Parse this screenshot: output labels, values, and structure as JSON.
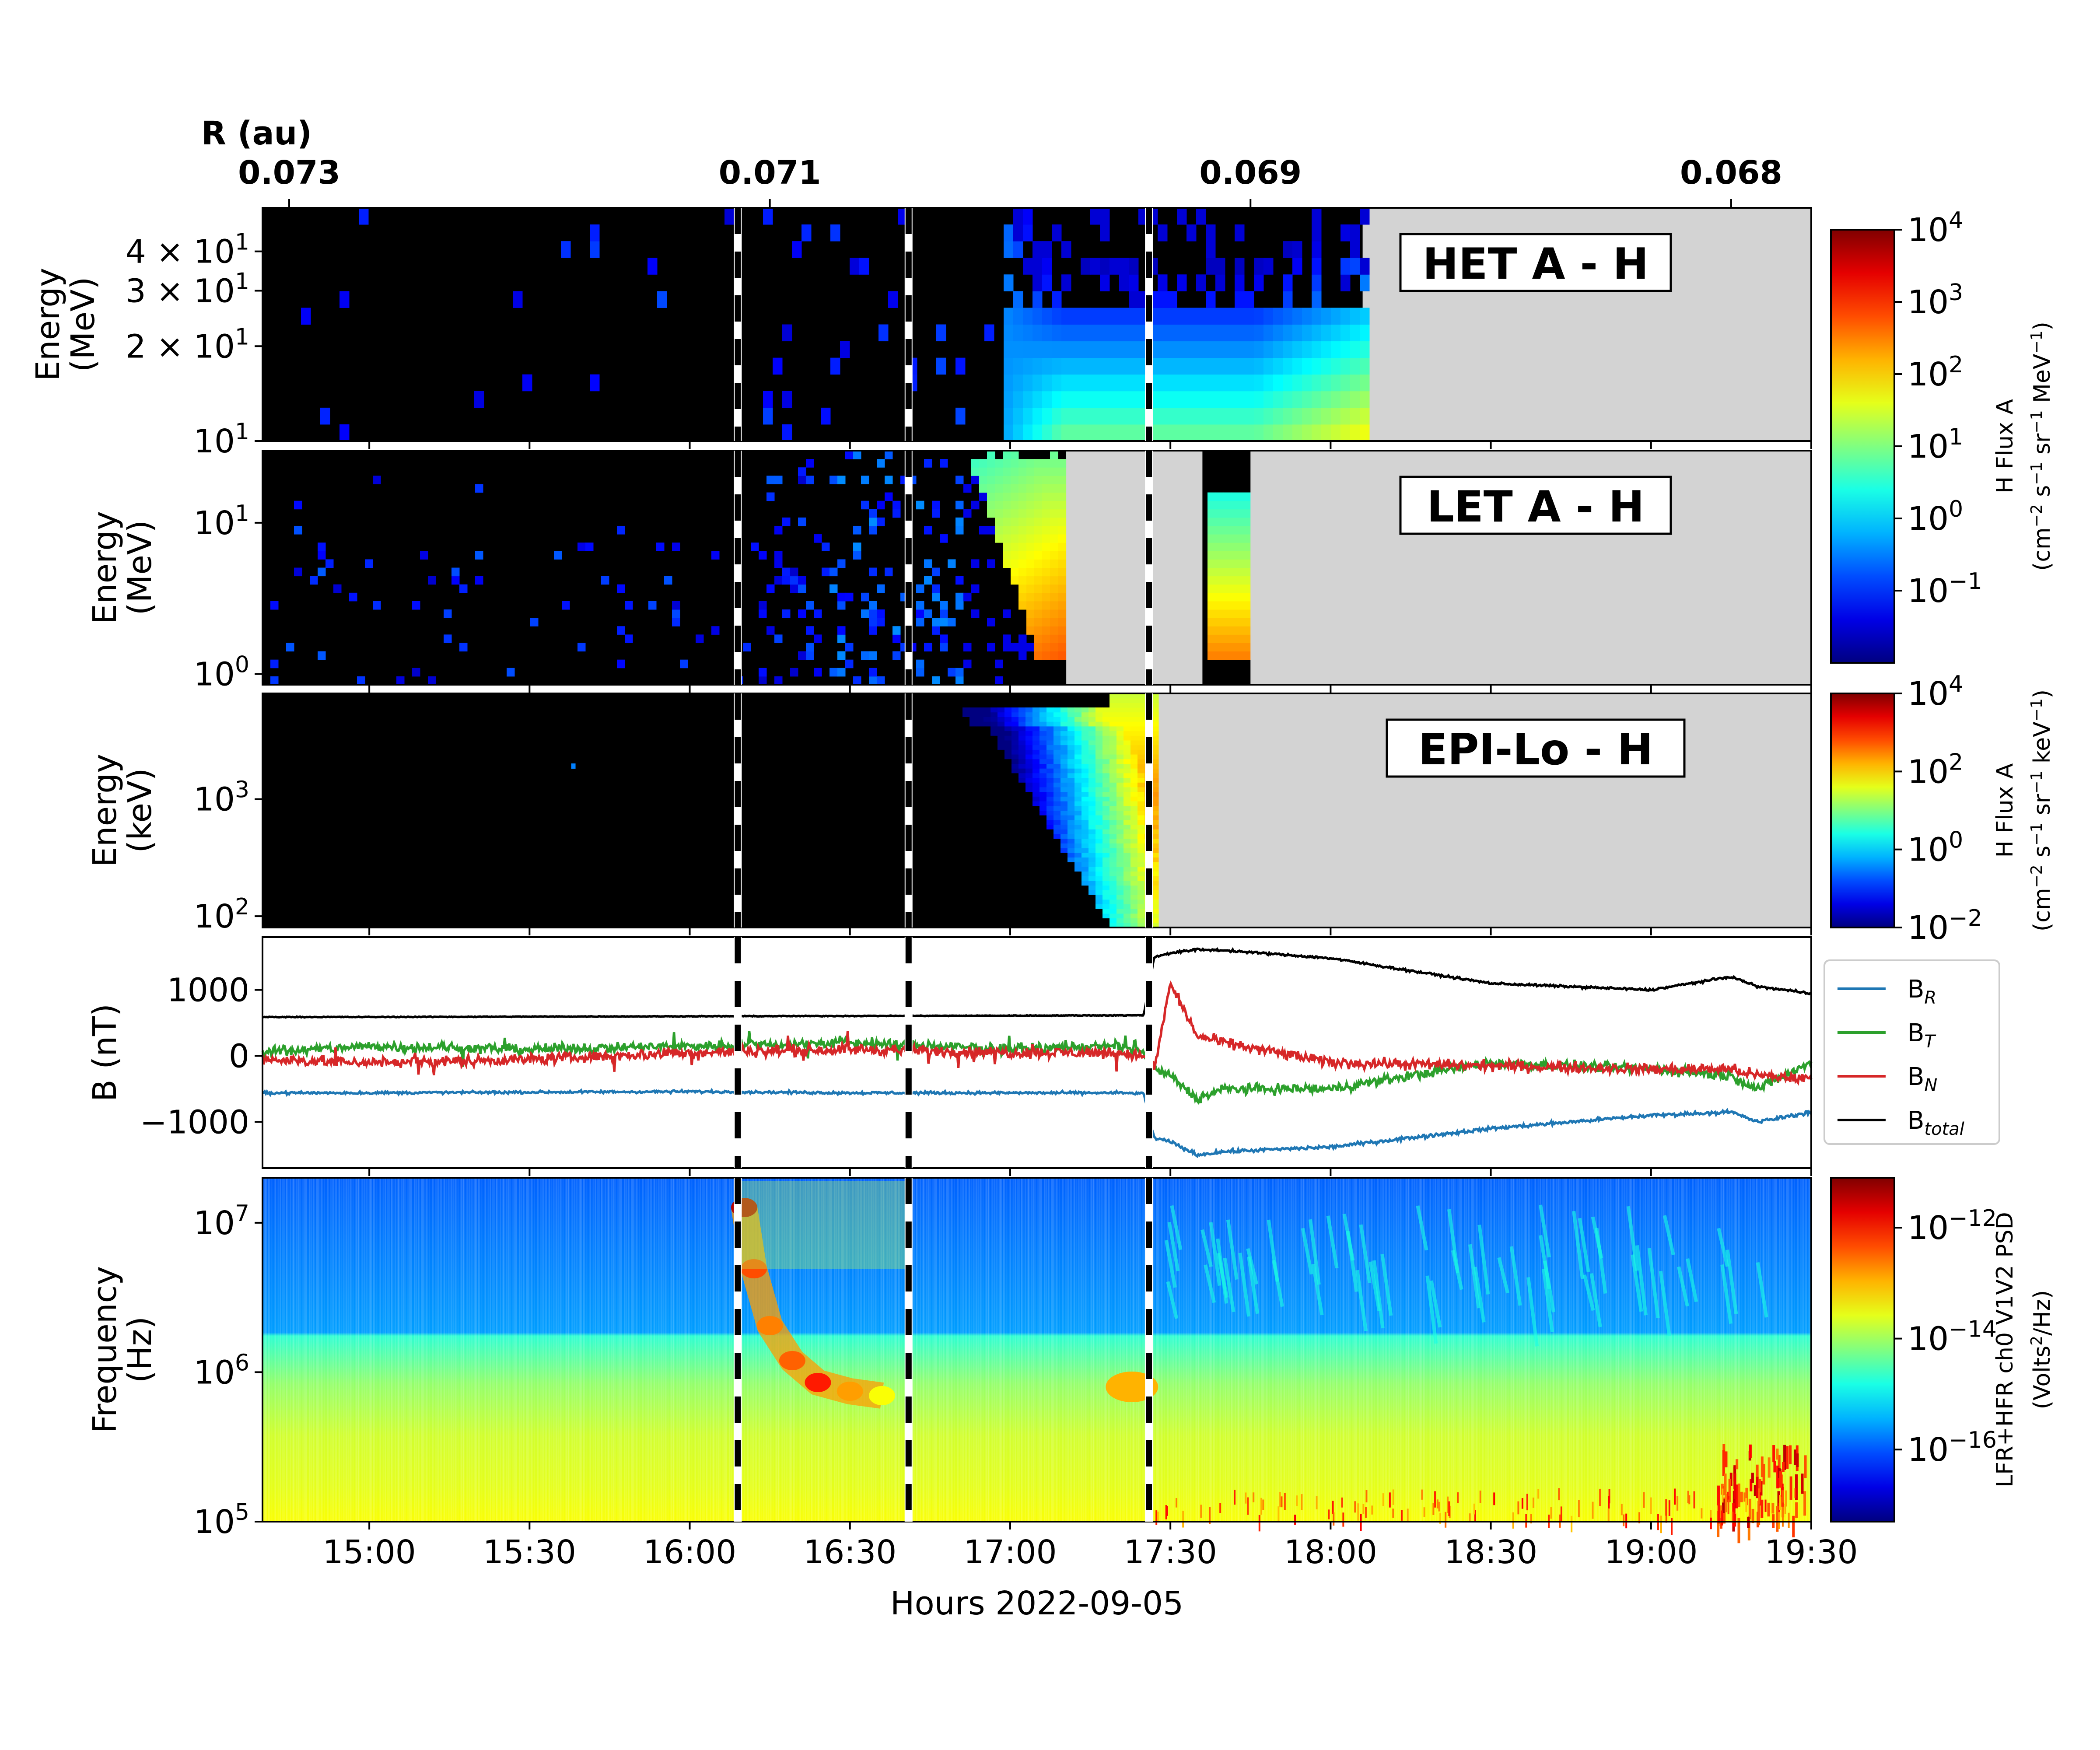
{
  "figure": {
    "r_axis_label": "R (au)",
    "r_ticks": [
      {
        "label": "0.073",
        "hour": 14.75
      },
      {
        "label": "0.071",
        "hour": 16.25
      },
      {
        "label": "0.069",
        "hour": 17.75
      },
      {
        "label": "0.068",
        "hour": 19.25
      }
    ],
    "x_label": "Hours 2022-09-05",
    "x_ticks": [
      "15:00",
      "15:30",
      "16:00",
      "16:30",
      "17:00",
      "17:30",
      "18:00",
      "18:30",
      "19:00",
      "19:30"
    ],
    "x_range_hours": [
      14.6667,
      19.5
    ],
    "event_markers_hours": [
      16.15,
      16.683,
      17.433
    ]
  },
  "panels": {
    "het": {
      "instrument_label": "HET A - H",
      "y_label_line1": "Energy",
      "y_label_line2": "(MeV)",
      "y_ticks": [
        {
          "label": "4 × 10",
          "sup": "1",
          "value": 40
        },
        {
          "label": "3 × 10",
          "sup": "1",
          "value": 30
        },
        {
          "label": "2 × 10",
          "sup": "1",
          "value": 20
        },
        {
          "label": "10",
          "sup": "1",
          "value": 10
        }
      ],
      "y_range": [
        10,
        55
      ],
      "data_end_hour": 18.1
    },
    "let": {
      "instrument_label": "LET A - H",
      "y_label_line1": "Energy",
      "y_label_line2": "(MeV)",
      "y_ticks": [
        {
          "label": "10",
          "sup": "1",
          "value": 10
        },
        {
          "label": "10",
          "sup": "0",
          "value": 1
        }
      ],
      "y_range": [
        0.85,
        30
      ],
      "gaps_hours": [
        [
          17.175,
          17.6
        ],
        [
          17.75,
          19.5
        ]
      ]
    },
    "epilo": {
      "instrument_label": "EPI-Lo - H",
      "y_label_line1": "Energy",
      "y_label_line2": "(keV)",
      "y_ticks": [
        {
          "label": "10",
          "sup": "3",
          "value": 1000
        },
        {
          "label": "10",
          "sup": "2",
          "value": 100
        }
      ],
      "y_range": [
        80,
        8000
      ],
      "data_end_hour": 17.45
    },
    "mag": {
      "y_label": "B (nT)",
      "y_ticks": [
        {
          "label": "1000",
          "value": 1000
        },
        {
          "label": "0",
          "value": 0
        },
        {
          "label": "−1000",
          "value": -1000
        }
      ],
      "y_range": [
        -1700,
        1800
      ],
      "legend": [
        {
          "label": "B",
          "sub": "R",
          "color": "#1f77b4"
        },
        {
          "label": "B",
          "sub": "T",
          "color": "#2ca02c"
        },
        {
          "label": "B",
          "sub": "N",
          "color": "#d62728"
        },
        {
          "label": "B",
          "sub": "total",
          "color": "#000000"
        }
      ]
    },
    "radio": {
      "y_label_line1": "Frequency",
      "y_label_line2": "(Hz)",
      "y_ticks": [
        {
          "label": "10",
          "sup": "7",
          "value": 10000000
        },
        {
          "label": "10",
          "sup": "6",
          "value": 1000000
        },
        {
          "label": "10",
          "sup": "5",
          "value": 100000
        }
      ],
      "y_range": [
        100000,
        20000000
      ]
    }
  },
  "colorbars": {
    "top": {
      "label_line1": "H Flux A",
      "label_line2": "(cm",
      "ticks": [
        {
          "label": "10",
          "sup": "4",
          "exp": 4
        },
        {
          "label": "10",
          "sup": "3",
          "exp": 3
        },
        {
          "label": "10",
          "sup": "2",
          "exp": 2
        },
        {
          "label": "10",
          "sup": "1",
          "exp": 1
        },
        {
          "label": "10",
          "sup": "0",
          "exp": 0
        },
        {
          "label": "10",
          "sup": "−1",
          "exp": -1
        }
      ],
      "range_exp": [
        -2,
        4
      ],
      "unit": "MeV"
    },
    "middle": {
      "label_line1": "H Flux A",
      "label_line2": "(cm",
      "ticks": [
        {
          "label": "10",
          "sup": "4",
          "exp": 4
        },
        {
          "label": "10",
          "sup": "2",
          "exp": 2
        },
        {
          "label": "10",
          "sup": "0",
          "exp": 0
        },
        {
          "label": "10",
          "sup": "−2",
          "exp": -2
        }
      ],
      "range_exp": [
        -2,
        4
      ],
      "unit": "keV"
    },
    "bottom": {
      "label_line1": "LFR+HFR ch0 V1V2 PSD",
      "label_line2": "(Volts",
      "ticks": [
        {
          "label": "10",
          "sup": "−12",
          "exp": -12
        },
        {
          "label": "10",
          "sup": "−14",
          "exp": -14
        },
        {
          "label": "10",
          "sup": "−16",
          "exp": -16
        }
      ],
      "range_exp": [
        -17.3,
        -11.1
      ]
    }
  },
  "chart_data": {
    "type": "line",
    "title": "",
    "xlabel": "Hours 2022-09-05",
    "ylabel": "B (nT)",
    "xlim": [
      "14:40",
      "19:30"
    ],
    "ylim": [
      -1700,
      1800
    ],
    "grid": false,
    "legend_position": "right",
    "x": [
      "14:40",
      "15:00",
      "15:30",
      "16:00",
      "16:30",
      "17:00",
      "17:20",
      "17:25",
      "17:27",
      "17:30",
      "17:35",
      "17:40",
      "18:00",
      "18:30",
      "19:00",
      "19:15",
      "19:20",
      "19:30"
    ],
    "series": [
      {
        "name": "B_total",
        "color": "#000000",
        "values": [
          590,
          590,
          595,
          600,
          605,
          610,
          615,
          615,
          1500,
          1560,
          1610,
          1600,
          1480,
          1100,
          1000,
          1200,
          1050,
          950
        ]
      },
      {
        "name": "B_R",
        "color": "#1f77b4",
        "values": [
          -560,
          -560,
          -550,
          -540,
          -560,
          -560,
          -560,
          -570,
          -1250,
          -1300,
          -1500,
          -1450,
          -1380,
          -1100,
          -900,
          -850,
          -1000,
          -850
        ]
      },
      {
        "name": "B_T",
        "color": "#2ca02c",
        "values": [
          50,
          150,
          100,
          150,
          200,
          100,
          150,
          50,
          -200,
          -300,
          -650,
          -500,
          -500,
          -100,
          -200,
          -300,
          -500,
          -100
        ]
      },
      {
        "name": "B_N",
        "color": "#d62728",
        "values": [
          -50,
          -100,
          -50,
          50,
          100,
          50,
          50,
          0,
          -200,
          1100,
          300,
          200,
          -100,
          -150,
          -200,
          -200,
          -300,
          -350
        ]
      }
    ]
  }
}
